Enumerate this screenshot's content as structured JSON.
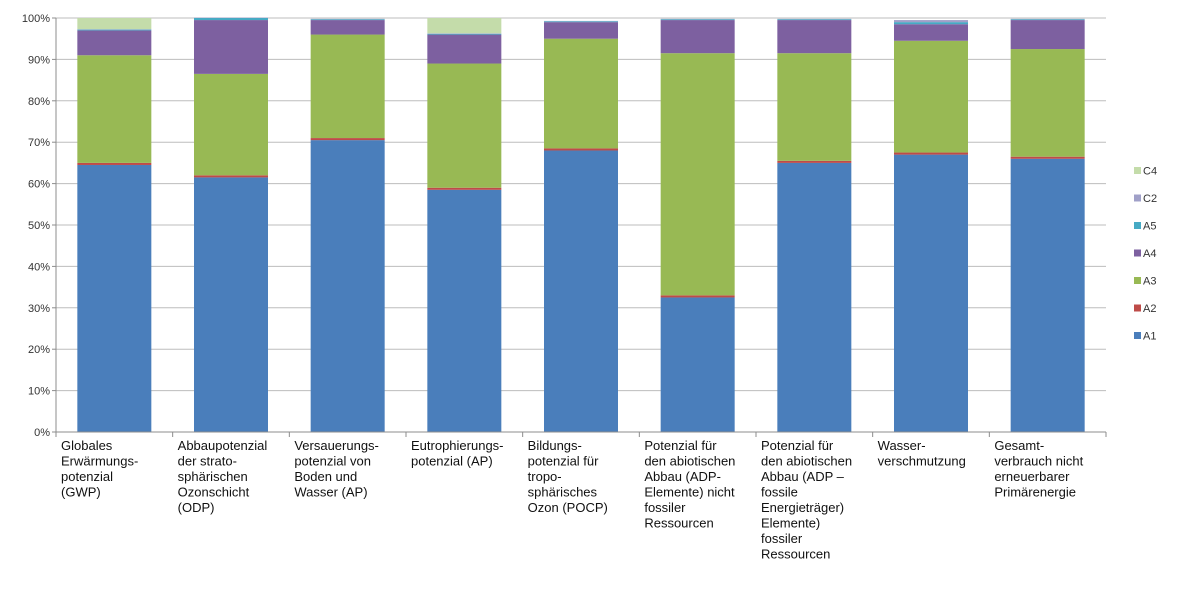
{
  "chart_data": {
    "type": "bar",
    "stacked": true,
    "percent_stacked": true,
    "ylim": [
      0,
      100
    ],
    "yticks": [
      "0%",
      "10%",
      "20%",
      "30%",
      "40%",
      "50%",
      "60%",
      "70%",
      "80%",
      "90%",
      "100%"
    ],
    "grid": true,
    "legend_position": "right",
    "legend_order": [
      "C4",
      "C2",
      "A5",
      "A4",
      "A3",
      "A2",
      "A1"
    ],
    "categories": [
      [
        "Globales",
        "Erwärmungs-",
        "potenzial",
        "(GWP)"
      ],
      [
        "Abbaupotenzial",
        "der strato-",
        "sphärischen",
        "Ozonschicht",
        "(ODP)"
      ],
      [
        "Versauerungs-",
        "potenzial von",
        "Boden und",
        "Wasser (AP)"
      ],
      [
        "Eutrophierungs-",
        "potenzial (AP)"
      ],
      [
        "Bildungs-",
        "potenzial für",
        "tropo-",
        "sphärisches",
        "Ozon (POCP)"
      ],
      [
        "Potenzial für",
        "den abiotischen",
        "Abbau (ADP-",
        "Elemente) nicht",
        "fossiler",
        "Ressourcen"
      ],
      [
        "Potenzial für",
        "den abiotischen",
        "Abbau (ADP –",
        "fossile",
        "Energieträger)",
        "Elemente)",
        "fossiler",
        "Ressourcen"
      ],
      [
        "Wasser-",
        "verschmutzung"
      ],
      [
        "Gesamt-",
        "verbrauch nicht",
        "erneuerbarer",
        "Primärenergie"
      ]
    ],
    "series": [
      {
        "name": "A1",
        "color": "#4a7ebb",
        "values": [
          64.5,
          61.5,
          70.5,
          58.5,
          68.0,
          32.5,
          65.0,
          67.0,
          66.0
        ]
      },
      {
        "name": "A2",
        "color": "#be4b48",
        "values": [
          0.5,
          0.5,
          0.5,
          0.5,
          0.5,
          0.5,
          0.5,
          0.5,
          0.5
        ]
      },
      {
        "name": "A3",
        "color": "#98b954",
        "values": [
          26.0,
          24.5,
          25.0,
          30.0,
          26.5,
          58.5,
          26.0,
          27.0,
          26.0
        ]
      },
      {
        "name": "A4",
        "color": "#7d60a0",
        "values": [
          6.0,
          13.0,
          3.5,
          7.0,
          4.0,
          8.0,
          8.0,
          4.0,
          7.0
        ]
      },
      {
        "name": "A5",
        "color": "#46aac4",
        "values": [
          0.2,
          0.5,
          0.2,
          0.2,
          0.2,
          0.2,
          0.2,
          0.5,
          0.2
        ]
      },
      {
        "name": "C2",
        "color": "#a0a0c8",
        "values": [
          0.1,
          0.1,
          0.1,
          0.1,
          0.1,
          0.1,
          0.1,
          0.5,
          0.1
        ]
      },
      {
        "name": "C4",
        "color": "#c4dcaa",
        "values": [
          2.7,
          0.0,
          0.0,
          3.7,
          0.0,
          0.0,
          0.0,
          0.0,
          0.0
        ]
      }
    ]
  }
}
